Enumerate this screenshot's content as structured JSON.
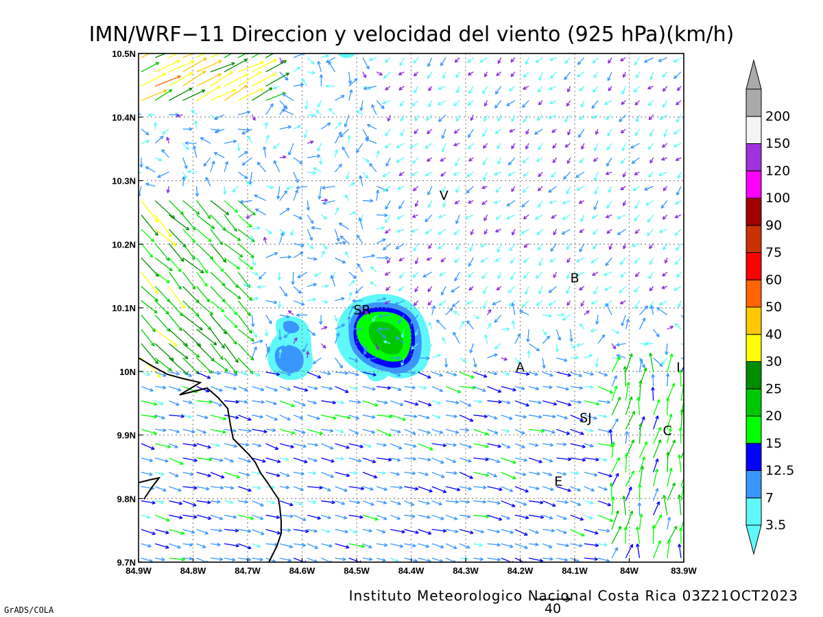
{
  "title": "IMN/WRF−11 Direccion y velocidad del viento (925 hPa)(km/h)",
  "footer": "Instituto Meteorologico Nacional Costa Rica 03Z21OCT2023",
  "credit": "GrADS/COLA",
  "reference_vector": {
    "value": "40"
  },
  "map": {
    "lon_range": [
      -84.9,
      -83.9
    ],
    "lat_range": [
      9.7,
      10.5
    ],
    "x_ticks": [
      "84.9W",
      "84.8W",
      "84.7W",
      "84.6W",
      "84.5W",
      "84.4W",
      "84.3W",
      "84.2W",
      "84.1W",
      "84W",
      "83.9W"
    ],
    "y_ticks": [
      "9.7N",
      "9.8N",
      "9.9N",
      "10N",
      "10.1N",
      "10.2N",
      "10.3N",
      "10.4N",
      "10.5N"
    ],
    "grid": "dotted",
    "cities": [
      {
        "label": "SR",
        "lon": -84.49,
        "lat": 10.09
      },
      {
        "label": "V",
        "lon": -84.34,
        "lat": 10.27
      },
      {
        "label": "B",
        "lon": -84.1,
        "lat": 10.14
      },
      {
        "label": "A",
        "lon": -84.2,
        "lat": 10.0
      },
      {
        "label": "SJ",
        "lon": -84.08,
        "lat": 9.92
      },
      {
        "label": "C",
        "lon": -83.93,
        "lat": 9.9
      },
      {
        "label": "E",
        "lon": -84.13,
        "lat": 9.82
      },
      {
        "label": "I",
        "lon": -83.91,
        "lat": 10.0
      }
    ]
  },
  "colorbar": {
    "levels": [
      {
        "label": "3.5",
        "color": "#5ff8f8"
      },
      {
        "label": "7",
        "color": "#3a96ff"
      },
      {
        "label": "12.5",
        "color": "#0000ff"
      },
      {
        "label": "15",
        "color": "#00ff00"
      },
      {
        "label": "20",
        "color": "#00c800"
      },
      {
        "label": "25",
        "color": "#008c00"
      },
      {
        "label": "30",
        "color": "#ffff00"
      },
      {
        "label": "40",
        "color": "#ffc800"
      },
      {
        "label": "50",
        "color": "#ff6400"
      },
      {
        "label": "60",
        "color": "#ff0000"
      },
      {
        "label": "75",
        "color": "#c83200"
      },
      {
        "label": "90",
        "color": "#a00000"
      },
      {
        "label": "100",
        "color": "#ff00ff"
      },
      {
        "label": "120",
        "color": "#a032dc"
      },
      {
        "label": "150",
        "color": "#f4f4f4"
      },
      {
        "label": "200",
        "color": "#aaaaaa"
      }
    ]
  }
}
